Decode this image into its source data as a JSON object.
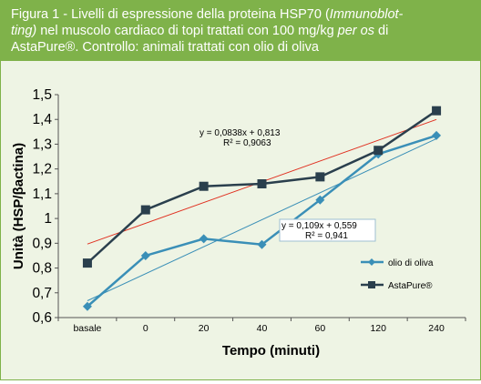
{
  "caption": {
    "line1": "Figura 1 - Livelli di espressione della proteina HSP70 (",
    "line1_em": "Immunoblot-",
    "line2_em": "ting)",
    "line2": " nel muscolo cardiaco di topi trattati con 100 mg/kg ",
    "line2_em2": "per os",
    "line2_end": " di",
    "line3": "AstaPure®. Controllo: animali trattati con olio di oliva"
  },
  "chart_data": {
    "type": "line",
    "categories": [
      "basale",
      "0",
      "20",
      "40",
      "60",
      "120",
      "240"
    ],
    "xlabel": "Tempo (minuti)",
    "ylabel": "Unità (HSP/βactina)",
    "ylim": [
      0.6,
      1.5
    ],
    "yticks": [
      "0,6",
      "0,7",
      "0,8",
      "0,9",
      "1",
      "1,1",
      "1,2",
      "1,3",
      "1,4",
      "1,5"
    ],
    "grid": false,
    "legend_position": "right",
    "series": [
      {
        "name": "olio di oliva",
        "color": "#3a8fb7",
        "marker": "diamond",
        "values": [
          0.645,
          0.85,
          0.918,
          0.895,
          1.075,
          1.26,
          1.335
        ]
      },
      {
        "name": "AstaPure®",
        "color": "#2a3f4d",
        "marker": "square",
        "values": [
          0.82,
          1.035,
          1.13,
          1.14,
          1.168,
          1.275,
          1.435
        ]
      }
    ],
    "trendlines": [
      {
        "series": "AstaPure®",
        "color": "#e03020",
        "slope": 0.0838,
        "intercept": 0.813,
        "equation": "y = 0,0838x + 0,813",
        "r2": "R² = 0,9063"
      },
      {
        "series": "olio di oliva",
        "color": "#3a8fb7",
        "slope": 0.109,
        "intercept": 0.559,
        "equation": "y = 0,109x + 0,559",
        "r2": "R² = 0,941"
      }
    ]
  }
}
